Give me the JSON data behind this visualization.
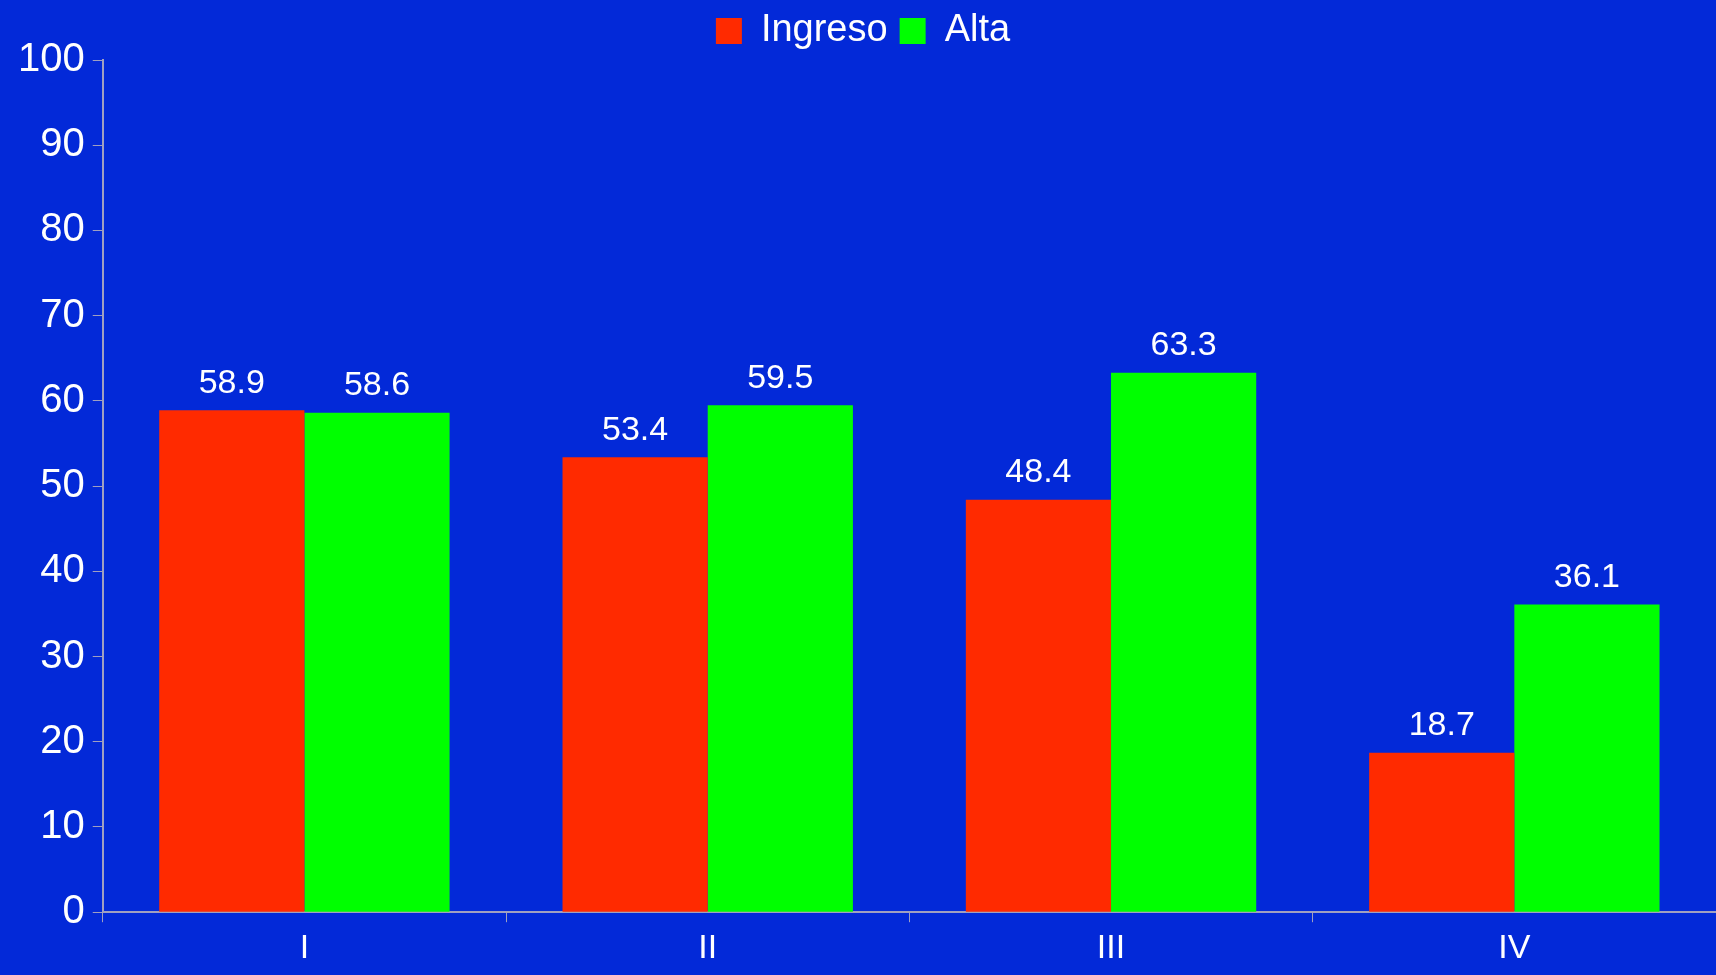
{
  "chart_data": {
    "type": "bar",
    "categories": [
      "I",
      "II",
      "III",
      "IV"
    ],
    "series": [
      {
        "name": "Ingreso",
        "color": "#ff2a00",
        "values": [
          58.9,
          53.4,
          48.4,
          18.7
        ]
      },
      {
        "name": "Alta",
        "color": "#00ff00",
        "values": [
          58.6,
          59.5,
          63.3,
          36.1
        ]
      }
    ],
    "ylim": [
      0,
      100
    ],
    "yticks": [
      0,
      10,
      20,
      30,
      40,
      50,
      60,
      70,
      80,
      90,
      100
    ],
    "legend": "top",
    "data_labels": true
  }
}
